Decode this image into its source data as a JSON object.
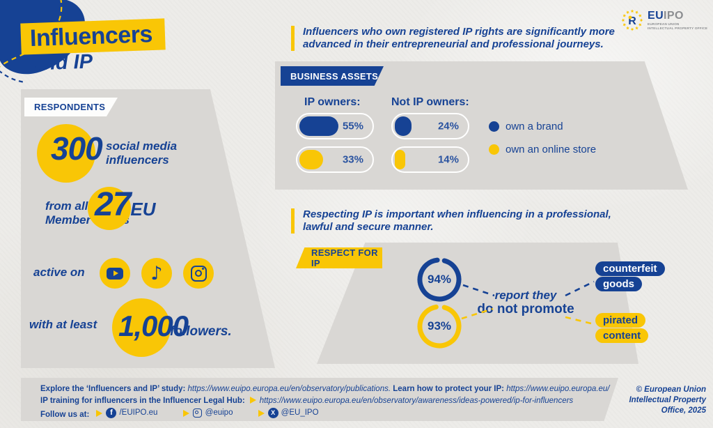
{
  "colors": {
    "blue": "#164294",
    "yellow": "#f9c606",
    "panel_gray": "#d9d7d4",
    "paper": "#edece9"
  },
  "title": {
    "line1": "Influencers",
    "line2": "and IP"
  },
  "logo": {
    "eu": "EU",
    "ipo": "IPO",
    "sub1": "EUROPEAN UNION",
    "sub2": "INTELLECTUAL PROPERTY OFFICE",
    "mark": "R"
  },
  "headline1": {
    "line1": "Influencers who own registered IP rights are significantly more",
    "line2": "advanced in their entrepreneurial and professional journeys."
  },
  "headline2": {
    "line1": "Respecting IP is important when influencing in a professional,",
    "line2": "lawful and secure manner."
  },
  "respondents": {
    "banner": "RESPONDENTS",
    "count": "300",
    "count_label_line1": "social media",
    "count_label_line2": "influencers",
    "from_line1": "from all",
    "from_line2": "Member States",
    "eu_number": "27",
    "eu_suffix": "EU",
    "active_on": "active on",
    "platforms": [
      "youtube",
      "tiktok",
      "instagram"
    ],
    "with_at_least": "with at least",
    "followers_number": "1,000",
    "followers_suffix": "followers."
  },
  "business_assets": {
    "banner": "BUSINESS ASSETS",
    "groups": [
      {
        "label": "IP owners:",
        "bars": [
          {
            "value": 55,
            "display": "55%",
            "color": "#164294"
          },
          {
            "value": 33,
            "display": "33%",
            "color": "#f9c606"
          }
        ]
      },
      {
        "label": "Not IP owners:",
        "bars": [
          {
            "value": 24,
            "display": "24%",
            "color": "#164294"
          },
          {
            "value": 14,
            "display": "14%",
            "color": "#f9c606"
          }
        ]
      }
    ],
    "legend": [
      {
        "label": "own a brand",
        "color": "#164294"
      },
      {
        "label": "own an online store",
        "color": "#f9c606"
      }
    ]
  },
  "respect": {
    "banner": "RESPECT FOR IP",
    "donuts": [
      {
        "value": 94,
        "display": "94%",
        "color": "#164294"
      },
      {
        "value": 93,
        "display": "93%",
        "color": "#f9c606"
      }
    ],
    "center_line1": "report they",
    "center_line2": "do not promote",
    "tags": [
      {
        "line1": "counterfeit",
        "line2": "goods"
      },
      {
        "line1": "pirated",
        "line2": "content"
      }
    ]
  },
  "footer": {
    "line1_bold1": "Explore the ‘Influencers and IP’ study:",
    "line1_url1": "https://www.euipo.europa.eu/en/observatory/publications.",
    "line1_bold2": "Learn how to protect your IP:",
    "line1_url2": "https://www.euipo.europa.eu/",
    "line2_bold": "IP training for influencers in the Influencer Legal Hub:",
    "line2_url": "https://www.euipo.europa.eu/en/observatory/awareness/ideas-powered/ip-for-influencers",
    "follow_label": "Follow us at:",
    "socials": [
      {
        "icon": "facebook",
        "handle": "/EUIPO.eu"
      },
      {
        "icon": "instagram",
        "handle": "@euipo"
      },
      {
        "icon": "x",
        "handle": "@EU_IPO"
      }
    ]
  },
  "copyright": {
    "line1": "© European Union",
    "line2": "Intellectual Property",
    "line3": "Office, 2025"
  },
  "chart_data": [
    {
      "type": "bar",
      "title": "Business assets",
      "categories": [
        "own a brand",
        "own an online store"
      ],
      "series": [
        {
          "name": "IP owners",
          "values": [
            55,
            33
          ]
        },
        {
          "name": "Not IP owners",
          "values": [
            24,
            14
          ]
        }
      ],
      "unit": "%",
      "xlim": [
        0,
        100
      ],
      "legend_position": "right",
      "grid": false
    },
    {
      "type": "donut",
      "title": "Respect for IP",
      "labels": [
        "report they do not promote counterfeit goods",
        "report they do not promote pirated content"
      ],
      "values": [
        94,
        93
      ],
      "unit": "%"
    }
  ]
}
